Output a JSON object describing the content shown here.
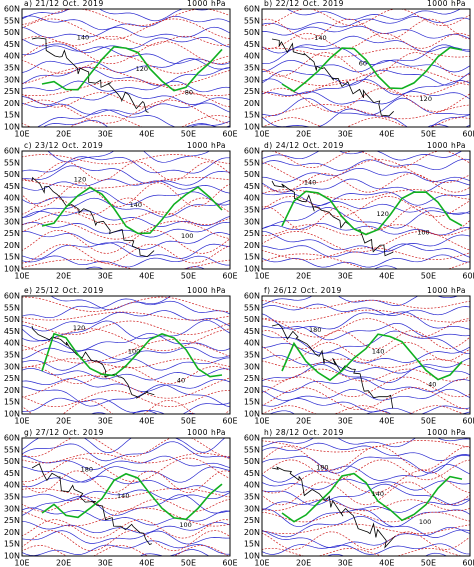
{
  "panels": [
    {
      "title": "a) 21/12 Oct. 2019",
      "level": "1000 hPa",
      "contour_labels": [
        "140",
        "120",
        "80"
      ]
    },
    {
      "title": "b) 22/12 Oct. 2019",
      "level": "1000 hPa",
      "contour_labels": [
        "140",
        "60",
        "120"
      ]
    },
    {
      "title": "c) 23/12 Oct. 2019",
      "level": "1000 hPa",
      "contour_labels": [
        "120",
        "140",
        "100"
      ]
    },
    {
      "title": "d) 24/12 Oct. 2019",
      "level": "1000 hPa",
      "contour_labels": [
        "140",
        "120",
        "100"
      ]
    },
    {
      "title": "e) 25/12 Oct. 2019",
      "level": "1000 hPa",
      "contour_labels": [
        "120",
        "100",
        "40"
      ]
    },
    {
      "title": "f) 26/12 Oct. 2019",
      "level": "1000 hPa",
      "contour_labels": [
        "180",
        "140",
        "40"
      ]
    },
    {
      "title": "g) 27/12 Oct. 2019",
      "level": "1000 hPa",
      "contour_labels": [
        "180",
        "140",
        "100"
      ]
    },
    {
      "title": "h) 28/12 Oct. 2019",
      "level": "1000 hPa",
      "contour_labels": [
        "180",
        "140",
        "100"
      ]
    }
  ],
  "lat_labels": [
    "60N",
    "55N",
    "50N",
    "45N",
    "40N",
    "35N",
    "30N",
    "25N",
    "20N",
    "15N",
    "10N"
  ],
  "lon_labels": [
    "10E",
    "20E",
    "30E",
    "40E",
    "50E",
    "60E"
  ]
}
